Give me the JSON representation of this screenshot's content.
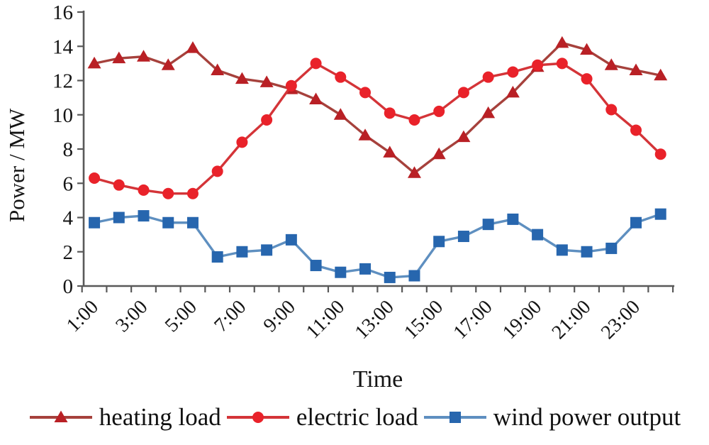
{
  "chart_data": {
    "type": "line",
    "title": "",
    "xlabel": "Time",
    "ylabel": "Power / MW",
    "ylim": [
      0,
      16
    ],
    "y_ticks": [
      0,
      2,
      4,
      6,
      8,
      10,
      12,
      14,
      16
    ],
    "x": [
      "1:00",
      "2:00",
      "3:00",
      "4:00",
      "5:00",
      "6:00",
      "7:00",
      "8:00",
      "9:00",
      "10:00",
      "11:00",
      "12:00",
      "13:00",
      "14:00",
      "15:00",
      "16:00",
      "17:00",
      "18:00",
      "19:00",
      "20:00",
      "21:00",
      "22:00",
      "23:00",
      "24:00"
    ],
    "x_tick_labels": [
      "1:00",
      "3:00",
      "5:00",
      "7:00",
      "9:00",
      "11:00",
      "13:00",
      "15:00",
      "17:00",
      "19:00",
      "21:00",
      "23:00"
    ],
    "grid": false,
    "legend_position": "bottom",
    "series": [
      {
        "name": "heating load",
        "marker": "triangle-icon",
        "line_color": "#a6413c",
        "marker_color": "#b92025",
        "values": [
          13.0,
          13.3,
          13.4,
          12.9,
          13.9,
          12.6,
          12.1,
          11.9,
          11.5,
          10.9,
          10.0,
          8.8,
          7.8,
          6.6,
          7.7,
          8.7,
          10.1,
          11.3,
          12.8,
          14.2,
          13.8,
          12.9,
          12.6,
          12.3
        ]
      },
      {
        "name": "electric load",
        "marker": "circle-icon",
        "line_color": "#d43438",
        "marker_color": "#e9222a",
        "values": [
          6.3,
          5.9,
          5.6,
          5.4,
          5.4,
          6.7,
          8.4,
          9.7,
          11.7,
          13.0,
          12.2,
          11.3,
          10.1,
          9.7,
          10.2,
          11.3,
          12.2,
          12.5,
          12.9,
          13.0,
          12.1,
          10.3,
          9.1,
          7.7
        ]
      },
      {
        "name": "wind power output",
        "marker": "square-icon",
        "line_color": "#5e8fc0",
        "marker_color": "#2766ae",
        "values": [
          3.7,
          4.0,
          4.1,
          3.7,
          3.7,
          1.7,
          2.0,
          2.1,
          2.7,
          1.2,
          0.8,
          1.0,
          0.5,
          0.6,
          2.6,
          2.9,
          3.6,
          3.9,
          3.0,
          2.1,
          2.0,
          2.2,
          3.7,
          4.2
        ]
      }
    ]
  },
  "colors": {
    "axis": "#595959",
    "tick_text": "#141414",
    "background": "#ffffff"
  }
}
